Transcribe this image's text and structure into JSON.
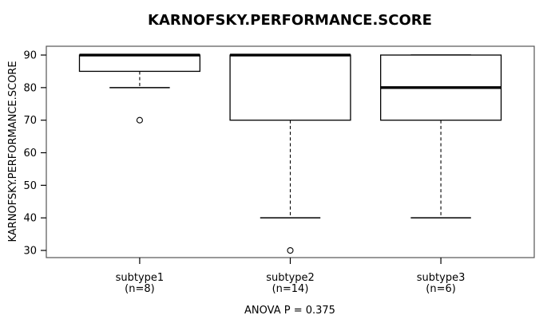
{
  "chart_data": {
    "type": "boxplot",
    "title": "KARNOFSKY.PERFORMANCE.SCORE",
    "ylabel": "KARNOFSKY.PERFORMANCE.SCORE",
    "xlabel": "",
    "annotation": "ANOVA P = 0.375",
    "ylim": [
      27.8,
      92.7
    ],
    "yticks": [
      30,
      40,
      50,
      60,
      70,
      80,
      90
    ],
    "grid": false,
    "legend": false,
    "groups": [
      {
        "label": "subtype1",
        "sublabel": "(n=8)",
        "n": 8,
        "q1": 85,
        "median": 90,
        "q3": 90,
        "whisker_low": 80,
        "whisker_high": 90,
        "outliers": [
          70
        ]
      },
      {
        "label": "subtype2",
        "sublabel": "(n=14)",
        "n": 14,
        "q1": 70,
        "median": 90,
        "q3": 90,
        "whisker_low": 40,
        "whisker_high": 90,
        "outliers": [
          30
        ]
      },
      {
        "label": "subtype3",
        "sublabel": "(n=6)",
        "n": 6,
        "q1": 70,
        "median": 80,
        "q3": 90,
        "whisker_low": 40,
        "whisker_high": 90,
        "outliers": []
      }
    ],
    "colors": {
      "line": "#000000",
      "frame": "#555555",
      "box_fill": "#ffffff",
      "background": "#ffffff"
    }
  }
}
